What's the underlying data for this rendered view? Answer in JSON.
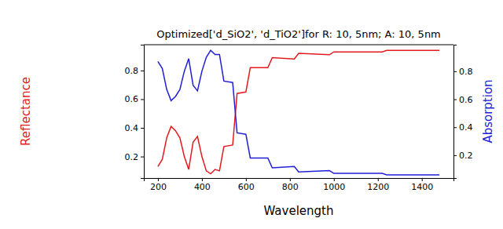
{
  "chart_data": {
    "type": "line",
    "title": "Optimized['d_SiO2', 'd_TiO2']for R: 10, 5nm; A: 10, 5nm",
    "x_label": "Wavelength",
    "y_label": "Reflectance",
    "y2_label": "Absorption",
    "x": [
      200,
      220,
      240,
      260,
      280,
      300,
      320,
      340,
      360,
      380,
      400,
      420,
      440,
      460,
      480,
      500,
      540,
      560,
      600,
      620,
      700,
      720,
      820,
      840,
      980,
      1000,
      1220,
      1240,
      1480
    ],
    "series": [
      {
        "name": "Reflectance",
        "color": "#e41a1c",
        "axis": "y",
        "values": [
          0.13,
          0.18,
          0.33,
          0.41,
          0.38,
          0.33,
          0.2,
          0.11,
          0.3,
          0.34,
          0.2,
          0.1,
          0.08,
          0.11,
          0.1,
          0.27,
          0.28,
          0.64,
          0.65,
          0.82,
          0.82,
          0.89,
          0.88,
          0.92,
          0.91,
          0.93,
          0.93,
          0.94,
          0.94
        ]
      },
      {
        "name": "Absorption",
        "color": "#1f1fd6",
        "axis": "y2",
        "values": [
          0.87,
          0.82,
          0.67,
          0.59,
          0.62,
          0.67,
          0.8,
          0.89,
          0.7,
          0.66,
          0.8,
          0.9,
          0.95,
          0.92,
          0.92,
          0.73,
          0.72,
          0.36,
          0.35,
          0.18,
          0.18,
          0.11,
          0.12,
          0.08,
          0.09,
          0.07,
          0.07,
          0.06,
          0.06
        ]
      }
    ],
    "xlim": [
      136,
      1544
    ],
    "xticks": [
      200,
      400,
      600,
      800,
      1000,
      1200,
      1400
    ],
    "ylim": [
      0.05,
      0.98
    ],
    "yticks": [
      0.2,
      0.4,
      0.6,
      0.8
    ],
    "y2lim": [
      0.037,
      0.99
    ],
    "y2ticks": [
      0.2,
      0.4,
      0.6,
      0.8
    ],
    "grid": false
  }
}
